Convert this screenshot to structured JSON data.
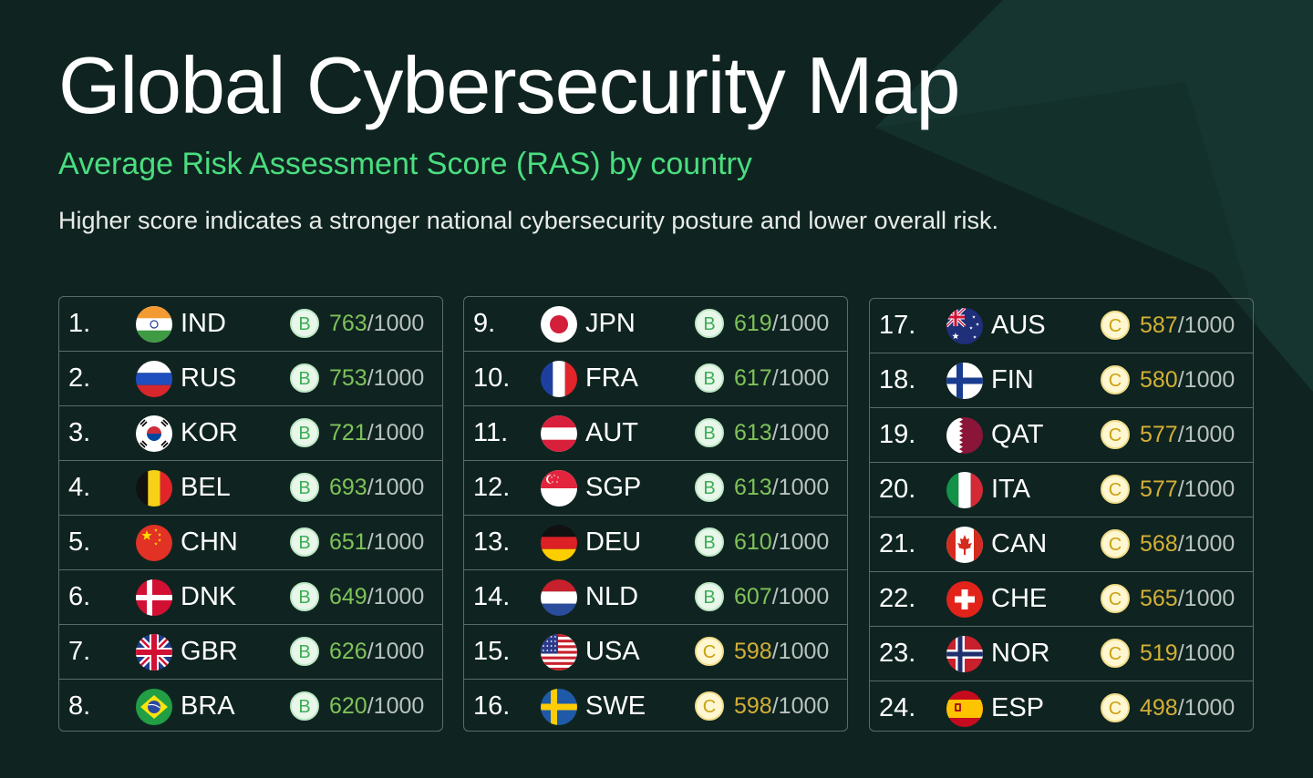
{
  "header": {
    "title": "Global Cybersecurity Map",
    "subtitle": "Average Risk Assessment Score (RAS) by country",
    "description": "Higher score indicates a stronger national cybersecurity posture and lower overall risk."
  },
  "colors": {
    "background": "#0f2420",
    "accent_green": "#4ade80",
    "grade_b": "#7fc25a",
    "grade_c": "#d4af37",
    "border": "#5d6b66"
  },
  "chart_data": {
    "type": "table",
    "title": "Global Cybersecurity Map",
    "subtitle": "Average Risk Assessment Score (RAS) by country",
    "max_score": 1000,
    "columns": [
      {
        "rows": [
          {
            "rank": "1.",
            "code": "IND",
            "flag": "india-flag-icon",
            "grade": "B",
            "score": 763,
            "max": "/1000"
          },
          {
            "rank": "2.",
            "code": "RUS",
            "flag": "russia-flag-icon",
            "grade": "B",
            "score": 753,
            "max": "/1000"
          },
          {
            "rank": "3.",
            "code": "KOR",
            "flag": "south-korea-flag-icon",
            "grade": "B",
            "score": 721,
            "max": "/1000"
          },
          {
            "rank": "4.",
            "code": "BEL",
            "flag": "belgium-flag-icon",
            "grade": "B",
            "score": 693,
            "max": "/1000"
          },
          {
            "rank": "5.",
            "code": "CHN",
            "flag": "china-flag-icon",
            "grade": "B",
            "score": 651,
            "max": "/1000"
          },
          {
            "rank": "6.",
            "code": "DNK",
            "flag": "denmark-flag-icon",
            "grade": "B",
            "score": 649,
            "max": "/1000"
          },
          {
            "rank": "7.",
            "code": "GBR",
            "flag": "uk-flag-icon",
            "grade": "B",
            "score": 626,
            "max": "/1000"
          },
          {
            "rank": "8.",
            "code": "BRA",
            "flag": "brazil-flag-icon",
            "grade": "B",
            "score": 620,
            "max": "/1000"
          }
        ]
      },
      {
        "rows": [
          {
            "rank": "9.",
            "code": "JPN",
            "flag": "japan-flag-icon",
            "grade": "B",
            "score": 619,
            "max": "/1000"
          },
          {
            "rank": "10.",
            "code": "FRA",
            "flag": "france-flag-icon",
            "grade": "B",
            "score": 617,
            "max": "/1000"
          },
          {
            "rank": "11.",
            "code": "AUT",
            "flag": "austria-flag-icon",
            "grade": "B",
            "score": 613,
            "max": "/1000"
          },
          {
            "rank": "12.",
            "code": "SGP",
            "flag": "singapore-flag-icon",
            "grade": "B",
            "score": 613,
            "max": "/1000"
          },
          {
            "rank": "13.",
            "code": "DEU",
            "flag": "germany-flag-icon",
            "grade": "B",
            "score": 610,
            "max": "/1000"
          },
          {
            "rank": "14.",
            "code": "NLD",
            "flag": "netherlands-flag-icon",
            "grade": "B",
            "score": 607,
            "max": "/1000"
          },
          {
            "rank": "15.",
            "code": "USA",
            "flag": "usa-flag-icon",
            "grade": "C",
            "score": 598,
            "max": "/1000"
          },
          {
            "rank": "16.",
            "code": "SWE",
            "flag": "sweden-flag-icon",
            "grade": "C",
            "score": 598,
            "max": "/1000"
          }
        ]
      },
      {
        "rows": [
          {
            "rank": "17.",
            "code": "AUS",
            "flag": "australia-flag-icon",
            "grade": "C",
            "score": 587,
            "max": "/1000"
          },
          {
            "rank": "18.",
            "code": "FIN",
            "flag": "finland-flag-icon",
            "grade": "C",
            "score": 580,
            "max": "/1000"
          },
          {
            "rank": "19.",
            "code": "QAT",
            "flag": "qatar-flag-icon",
            "grade": "C",
            "score": 577,
            "max": "/1000"
          },
          {
            "rank": "20.",
            "code": "ITA",
            "flag": "italy-flag-icon",
            "grade": "C",
            "score": 577,
            "max": "/1000"
          },
          {
            "rank": "21.",
            "code": "CAN",
            "flag": "canada-flag-icon",
            "grade": "C",
            "score": 568,
            "max": "/1000"
          },
          {
            "rank": "22.",
            "code": "CHE",
            "flag": "switzerland-flag-icon",
            "grade": "C",
            "score": 565,
            "max": "/1000"
          },
          {
            "rank": "23.",
            "code": "NOR",
            "flag": "norway-flag-icon",
            "grade": "C",
            "score": 519,
            "max": "/1000"
          },
          {
            "rank": "24.",
            "code": "ESP",
            "flag": "spain-flag-icon",
            "grade": "C",
            "score": 498,
            "max": "/1000"
          }
        ]
      }
    ]
  }
}
